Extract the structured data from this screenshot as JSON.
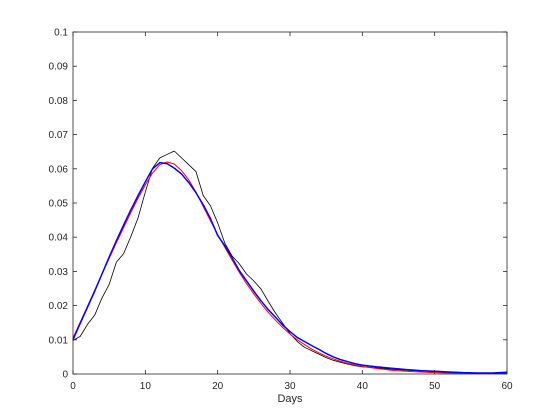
{
  "chart_data": {
    "type": "line",
    "title": "",
    "xlabel": "Days",
    "ylabel": "",
    "xlim": [
      0,
      60
    ],
    "ylim": [
      0,
      0.1
    ],
    "xticks": [
      0,
      10,
      20,
      30,
      40,
      50,
      60
    ],
    "yticks": [
      0,
      0.01,
      0.02,
      0.03,
      0.04,
      0.05,
      0.06,
      0.07,
      0.08,
      0.09,
      0.1
    ],
    "xtick_labels": [
      "0",
      "10",
      "20",
      "30",
      "40",
      "50",
      "60"
    ],
    "ytick_labels": [
      "0",
      "0.01",
      "0.02",
      "0.03",
      "0.04",
      "0.05",
      "0.06",
      "0.07",
      "0.08",
      "0.09",
      "0.1"
    ],
    "grid": false,
    "legend": "none",
    "series": [
      {
        "color": "#000000",
        "x": [
          0,
          1,
          2,
          3,
          4,
          5,
          6,
          7,
          8,
          9,
          10,
          11,
          12,
          13,
          14,
          15,
          16,
          17,
          18,
          19,
          20,
          21,
          22,
          23,
          24,
          25,
          26,
          27,
          28,
          29,
          30,
          31,
          32,
          33,
          34,
          35,
          36,
          37,
          38,
          39,
          40,
          42,
          44,
          46,
          48,
          50,
          52,
          54,
          56,
          58,
          60
        ],
        "y": [
          0.0098,
          0.011,
          0.0145,
          0.0172,
          0.0222,
          0.0262,
          0.0327,
          0.0352,
          0.0402,
          0.0457,
          0.0532,
          0.0602,
          0.0632,
          0.0642,
          0.0652,
          0.0632,
          0.0612,
          0.0592,
          0.0522,
          0.0492,
          0.0442,
          0.0382,
          0.0345,
          0.0322,
          0.0292,
          0.0272,
          0.0248,
          0.0212,
          0.0178,
          0.0148,
          0.0118,
          0.0095,
          0.0078,
          0.0068,
          0.0058,
          0.0048,
          0.004,
          0.0034,
          0.0029,
          0.0024,
          0.0021,
          0.0018,
          0.0014,
          0.0011,
          0.0009,
          0.0007,
          0.0005,
          0.0004,
          0.0003,
          0.0002,
          0.0003
        ]
      },
      {
        "color": "#ff0000",
        "x": [
          0,
          1,
          2,
          3,
          4,
          5,
          6,
          7,
          8,
          9,
          10,
          11,
          12,
          13,
          14,
          15,
          16,
          17,
          18,
          19,
          20,
          21,
          22,
          23,
          24,
          25,
          26,
          27,
          28,
          29,
          30,
          31,
          32,
          33,
          34,
          35,
          36,
          37,
          38,
          39,
          40,
          42,
          44,
          46,
          48,
          50,
          52,
          54,
          56,
          58,
          60
        ],
        "y": [
          0.0105,
          0.0152,
          0.0198,
          0.0245,
          0.0292,
          0.0338,
          0.0384,
          0.0428,
          0.0472,
          0.0514,
          0.0553,
          0.0588,
          0.0612,
          0.062,
          0.0614,
          0.0595,
          0.0568,
          0.0532,
          0.049,
          0.0448,
          0.0408,
          0.037,
          0.0333,
          0.0297,
          0.0264,
          0.0234,
          0.0206,
          0.018,
          0.0157,
          0.0136,
          0.0117,
          0.01,
          0.0086,
          0.0073,
          0.0062,
          0.0052,
          0.0044,
          0.0037,
          0.0031,
          0.0026,
          0.0022,
          0.0016,
          0.0011,
          0.0008,
          0.0006,
          0.0004,
          0.0003,
          0.0002,
          0.0002,
          0.0001,
          0.0001
        ]
      },
      {
        "color": "#0000ff",
        "x": [
          0,
          1,
          2,
          3,
          4,
          5,
          6,
          7,
          8,
          9,
          10,
          11,
          12,
          13,
          14,
          15,
          16,
          17,
          18,
          19,
          20,
          21,
          22,
          23,
          24,
          25,
          26,
          27,
          28,
          29,
          30,
          31,
          32,
          33,
          34,
          35,
          36,
          37,
          38,
          39,
          40,
          42,
          44,
          46,
          48,
          50,
          52,
          54,
          56,
          58,
          60
        ],
        "y": [
          0.01,
          0.0148,
          0.0195,
          0.0242,
          0.0292,
          0.0342,
          0.039,
          0.0436,
          0.048,
          0.0522,
          0.0562,
          0.06,
          0.0618,
          0.0615,
          0.0602,
          0.0585,
          0.056,
          0.053,
          0.0495,
          0.0455,
          0.0405,
          0.0375,
          0.034,
          0.0302,
          0.0272,
          0.0242,
          0.0214,
          0.0188,
          0.0166,
          0.0143,
          0.0124,
          0.0107,
          0.0095,
          0.0083,
          0.0072,
          0.006,
          0.005,
          0.0042,
          0.0036,
          0.003,
          0.0026,
          0.0021,
          0.0017,
          0.0013,
          0.001,
          0.0008,
          0.0006,
          0.0004,
          0.0003,
          0.0003,
          0.0005
        ]
      }
    ]
  }
}
